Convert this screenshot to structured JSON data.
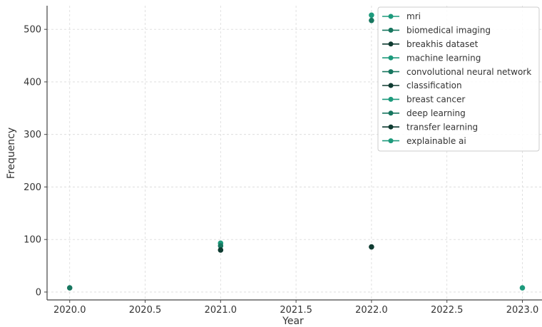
{
  "chart_data": {
    "type": "scatter",
    "title": "",
    "xlabel": "Year",
    "ylabel": "Frequency",
    "xlim": [
      2019.85,
      2023.13
    ],
    "ylim": [
      -15,
      545
    ],
    "xticks": [
      2020.0,
      2020.5,
      2021.0,
      2021.5,
      2022.0,
      2022.5,
      2023.0
    ],
    "xtick_labels": [
      "2020.0",
      "2020.5",
      "2021.0",
      "2021.5",
      "2022.0",
      "2022.5",
      "2023.0"
    ],
    "yticks": [
      0,
      100,
      200,
      300,
      400,
      500
    ],
    "ytick_labels": [
      "0",
      "100",
      "200",
      "300",
      "400",
      "500"
    ],
    "grid": true,
    "legend_position": "top-right",
    "series": [
      {
        "name": "mri",
        "color": "#1d9a7c",
        "x": [
          2022.0
        ],
        "y": [
          527
        ]
      },
      {
        "name": "biomedical imaging",
        "color": "#17765f",
        "x": [
          2022.0
        ],
        "y": [
          517
        ]
      },
      {
        "name": "breakhis dataset",
        "color": "#0f3b31",
        "x": [],
        "y": []
      },
      {
        "name": "machine learning",
        "color": "#1d9a7c",
        "x": [
          2021.0
        ],
        "y": [
          93
        ]
      },
      {
        "name": "convolutional neural network",
        "color": "#17765f",
        "x": [
          2021.0
        ],
        "y": [
          88
        ]
      },
      {
        "name": "classification",
        "color": "#0f3b31",
        "x": [
          2021.0
        ],
        "y": [
          80
        ]
      },
      {
        "name": "breast cancer",
        "color": "#1d9a7c",
        "x": [],
        "y": []
      },
      {
        "name": "deep learning",
        "color": "#17765f",
        "x": [
          2020.0
        ],
        "y": [
          8
        ]
      },
      {
        "name": "transfer learning",
        "color": "#0f3b31",
        "x": [
          2022.0
        ],
        "y": [
          86
        ]
      },
      {
        "name": "explainable ai",
        "color": "#1d9a7c",
        "x": [
          2023.0
        ],
        "y": [
          8
        ]
      }
    ]
  }
}
